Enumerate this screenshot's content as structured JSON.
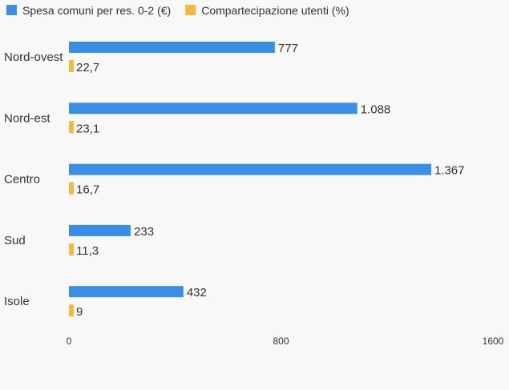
{
  "chart_data": {
    "type": "bar",
    "orientation": "horizontal",
    "categories": [
      "Nord-ovest",
      "Nord-est",
      "Centro",
      "Sud",
      "Isole"
    ],
    "series": [
      {
        "name": "Spesa comuni per res. 0-2 (€)",
        "color": "#3a8ee6",
        "values": [
          777,
          1088,
          1367,
          233,
          432
        ],
        "labels": [
          "777",
          "1.088",
          "1.367",
          "233",
          "432"
        ]
      },
      {
        "name": "Compartecipazione utenti (%)",
        "color": "#f6b93b",
        "values": [
          22.7,
          23.1,
          16.7,
          11.3,
          9
        ],
        "labels": [
          "22,7",
          "23,1",
          "16,7",
          "11,3",
          "9"
        ]
      }
    ],
    "xlim": [
      0,
      1600
    ],
    "xticks": [
      "0",
      "800",
      "1600"
    ],
    "legend_position": "top-left",
    "grid": false
  }
}
